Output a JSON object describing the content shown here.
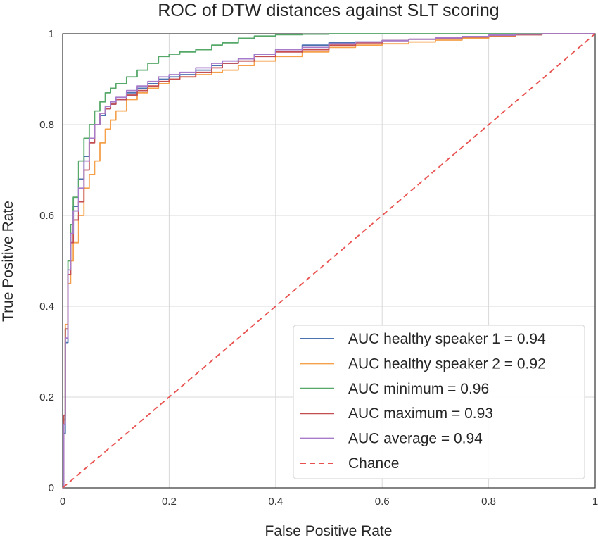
{
  "chart_data": {
    "type": "line",
    "title": "ROC of DTW distances against SLT scoring",
    "xlabel": "False Positive Rate",
    "ylabel": "True Positive Rate",
    "xlim": [
      0,
      1
    ],
    "ylim": [
      0,
      1
    ],
    "xticks": [
      0,
      0.2,
      0.4,
      0.6,
      0.8,
      1
    ],
    "yticks": [
      0,
      0.2,
      0.4,
      0.6,
      0.8,
      1
    ],
    "xtick_labels": [
      "0",
      "0.2",
      "0.4",
      "0.6",
      "0.8",
      "1"
    ],
    "ytick_labels": [
      "0",
      "0.2",
      "0.4",
      "0.6",
      "0.8",
      "1"
    ],
    "grid": true,
    "legend_position": "lower-right",
    "series": [
      {
        "name": "AUC healthy speaker 1 = 0.94",
        "color": "#4c72b0",
        "style": "solid",
        "x": [
          0,
          0.002,
          0.005,
          0.01,
          0.015,
          0.02,
          0.03,
          0.04,
          0.05,
          0.06,
          0.07,
          0.08,
          0.09,
          0.1,
          0.12,
          0.14,
          0.16,
          0.18,
          0.2,
          0.22,
          0.25,
          0.28,
          0.3,
          0.33,
          0.36,
          0.4,
          0.45,
          0.5,
          0.55,
          0.6,
          0.65,
          0.7,
          0.75,
          0.8,
          0.85,
          0.9,
          1
        ],
        "y": [
          0,
          0.12,
          0.32,
          0.47,
          0.56,
          0.62,
          0.68,
          0.73,
          0.77,
          0.8,
          0.82,
          0.835,
          0.845,
          0.855,
          0.87,
          0.88,
          0.89,
          0.9,
          0.905,
          0.91,
          0.92,
          0.93,
          0.935,
          0.945,
          0.955,
          0.965,
          0.975,
          0.98,
          0.982,
          0.985,
          0.988,
          0.99,
          0.993,
          0.996,
          0.998,
          1,
          1
        ]
      },
      {
        "name": "AUC healthy speaker 2 = 0.92",
        "color": "#f5a04a",
        "style": "solid",
        "x": [
          0,
          0.002,
          0.005,
          0.01,
          0.015,
          0.02,
          0.03,
          0.04,
          0.05,
          0.06,
          0.07,
          0.08,
          0.09,
          0.1,
          0.12,
          0.14,
          0.16,
          0.18,
          0.2,
          0.22,
          0.25,
          0.28,
          0.3,
          0.33,
          0.36,
          0.4,
          0.45,
          0.5,
          0.55,
          0.6,
          0.65,
          0.7,
          0.75,
          0.8,
          0.85,
          0.9,
          1
        ],
        "y": [
          0,
          0.15,
          0.36,
          0.45,
          0.5,
          0.54,
          0.6,
          0.66,
          0.69,
          0.72,
          0.76,
          0.79,
          0.81,
          0.83,
          0.855,
          0.87,
          0.88,
          0.89,
          0.9,
          0.905,
          0.91,
          0.915,
          0.92,
          0.93,
          0.94,
          0.95,
          0.96,
          0.97,
          0.975,
          0.978,
          0.982,
          0.986,
          0.99,
          0.995,
          0.998,
          1,
          1
        ]
      },
      {
        "name": "AUC minimum = 0.96",
        "color": "#55a868",
        "style": "solid",
        "x": [
          0,
          0.002,
          0.005,
          0.01,
          0.015,
          0.02,
          0.03,
          0.04,
          0.05,
          0.06,
          0.07,
          0.08,
          0.09,
          0.1,
          0.12,
          0.14,
          0.16,
          0.18,
          0.2,
          0.22,
          0.25,
          0.28,
          0.3,
          0.33,
          0.36,
          0.4,
          0.45,
          0.5,
          0.55,
          0.6,
          1
        ],
        "y": [
          0,
          0.15,
          0.35,
          0.5,
          0.58,
          0.64,
          0.72,
          0.77,
          0.8,
          0.83,
          0.85,
          0.87,
          0.88,
          0.89,
          0.905,
          0.92,
          0.935,
          0.95,
          0.955,
          0.96,
          0.965,
          0.975,
          0.98,
          0.99,
          0.995,
          0.998,
          0.999,
          1,
          1,
          1,
          1
        ]
      },
      {
        "name": "AUC maximum = 0.93",
        "color": "#c44e52",
        "style": "solid",
        "x": [
          0,
          0.002,
          0.005,
          0.01,
          0.015,
          0.02,
          0.03,
          0.04,
          0.05,
          0.06,
          0.07,
          0.08,
          0.09,
          0.1,
          0.12,
          0.14,
          0.16,
          0.18,
          0.2,
          0.22,
          0.25,
          0.28,
          0.3,
          0.33,
          0.36,
          0.4,
          0.45,
          0.5,
          0.55,
          0.6,
          0.65,
          0.7,
          0.75,
          0.8,
          0.85,
          0.9,
          1
        ],
        "y": [
          0,
          0.16,
          0.35,
          0.47,
          0.54,
          0.59,
          0.63,
          0.7,
          0.76,
          0.8,
          0.825,
          0.835,
          0.845,
          0.855,
          0.865,
          0.875,
          0.885,
          0.895,
          0.9,
          0.905,
          0.915,
          0.925,
          0.935,
          0.94,
          0.95,
          0.96,
          0.965,
          0.975,
          0.98,
          0.985,
          0.988,
          0.99,
          0.993,
          0.996,
          0.998,
          1,
          1
        ]
      },
      {
        "name": "AUC average = 0.94",
        "color": "#a77bca",
        "style": "solid",
        "x": [
          0,
          0.002,
          0.005,
          0.01,
          0.015,
          0.02,
          0.03,
          0.04,
          0.05,
          0.06,
          0.07,
          0.08,
          0.09,
          0.1,
          0.12,
          0.14,
          0.16,
          0.18,
          0.2,
          0.22,
          0.25,
          0.28,
          0.3,
          0.33,
          0.36,
          0.4,
          0.45,
          0.5,
          0.55,
          0.6,
          0.65,
          0.7,
          0.75,
          0.8,
          0.85,
          0.9,
          1
        ],
        "y": [
          0,
          0.14,
          0.33,
          0.48,
          0.56,
          0.61,
          0.66,
          0.72,
          0.77,
          0.8,
          0.825,
          0.84,
          0.85,
          0.86,
          0.875,
          0.885,
          0.895,
          0.905,
          0.91,
          0.915,
          0.925,
          0.935,
          0.94,
          0.945,
          0.955,
          0.965,
          0.97,
          0.978,
          0.982,
          0.985,
          0.988,
          0.991,
          0.994,
          0.997,
          0.999,
          1,
          1
        ]
      },
      {
        "name": "Chance",
        "color": "#e8514f",
        "style": "dashed",
        "x": [
          0,
          1
        ],
        "y": [
          0,
          1
        ]
      }
    ]
  }
}
